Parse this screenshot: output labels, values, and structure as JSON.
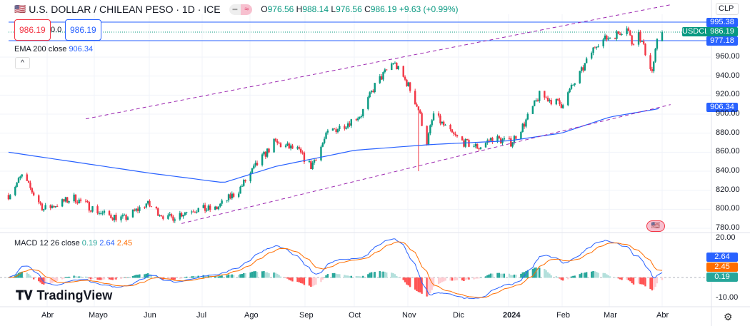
{
  "header": {
    "title": "U.S. DOLLAR / CHILEAN PESO · 1D · ICE",
    "open_label": "O",
    "open": "976.56",
    "high_label": "H",
    "high": "988.14",
    "low_label": "L",
    "low": "976.56",
    "close_label": "C",
    "close": "986.19",
    "change": "+9.63 (+0.99%)",
    "mode_icons": [
      "minus-icon",
      "approx-icon"
    ]
  },
  "trade_boxes": {
    "sell": "986.19",
    "spread": "0.0",
    "buy": "986.19"
  },
  "ema": {
    "label": "EMA 200 close",
    "value": "906.34"
  },
  "collapse_label": "^",
  "currency": {
    "value": "CLP"
  },
  "symbol_tag": "USDCLP",
  "price_tags": [
    {
      "value": "995.38",
      "color": "#2962ff"
    },
    {
      "value": "986.19",
      "color": "#089981"
    },
    {
      "value": "977.18",
      "color": "#2962ff"
    },
    {
      "value": "906.34",
      "color": "#2962ff"
    }
  ],
  "macd": {
    "label": "MACD 12 26 close",
    "hist": "0.19",
    "macd": "2.64",
    "signal": "2.45",
    "tags": [
      "2.64",
      "2.45",
      "0.19"
    ]
  },
  "logo": "TradingView",
  "colors": {
    "up": "#089981",
    "down": "#f23645",
    "ema": "#2962ff",
    "macd": "#2962ff",
    "signal": "#ff6d00",
    "channel": "#9c27b0"
  },
  "chart_data": {
    "type": "candlestick",
    "price_axis": {
      "ticks": [
        "960.00",
        "940.00",
        "920.00",
        "900.00",
        "880.00",
        "860.00",
        "840.00",
        "820.00",
        "800.00",
        "780.00"
      ],
      "range": [
        772,
        1000
      ]
    },
    "macd_axis": {
      "ticks": [
        "20.00",
        "-10.00"
      ],
      "range": [
        -16,
        22
      ]
    },
    "x_ticks": [
      "Abr",
      "Mayo",
      "Jun",
      "Jul",
      "Ago",
      "Sep",
      "Oct",
      "Nov",
      "Dic",
      "2024",
      "Feb",
      "Mar",
      "Abr"
    ],
    "close_path": [
      [
        "2023-03-09",
        815
      ],
      [
        "2023-03-17",
        835
      ],
      [
        "2023-03-30",
        800
      ],
      [
        "2023-04-17",
        812
      ],
      [
        "2023-05-04",
        795
      ],
      [
        "2023-05-17",
        790
      ],
      [
        "2023-05-30",
        806
      ],
      [
        "2023-06-12",
        790
      ],
      [
        "2023-06-26",
        800
      ],
      [
        "2023-07-10",
        800
      ],
      [
        "2023-07-24",
        820
      ],
      [
        "2023-08-03",
        845
      ],
      [
        "2023-08-14",
        870
      ],
      [
        "2023-08-28",
        862
      ],
      [
        "2023-09-05",
        845
      ],
      [
        "2023-09-15",
        880
      ],
      [
        "2023-09-26",
        890
      ],
      [
        "2023-10-05",
        900
      ],
      [
        "2023-10-13",
        930
      ],
      [
        "2023-10-24",
        955
      ],
      [
        "2023-11-02",
        930
      ],
      [
        "2023-11-08",
        905
      ],
      [
        "2023-11-13",
        870
      ],
      [
        "2023-11-17",
        900
      ],
      [
        "2023-11-22",
        890
      ],
      [
        "2023-11-27",
        880
      ],
      [
        "2023-12-05",
        870
      ],
      [
        "2023-12-14",
        865
      ],
      [
        "2023-12-22",
        875
      ],
      [
        "2024-01-02",
        870
      ],
      [
        "2024-01-10",
        890
      ],
      [
        "2024-01-19",
        920
      ],
      [
        "2024-02-01",
        910
      ],
      [
        "2024-02-13",
        945
      ],
      [
        "2024-02-22",
        975
      ],
      [
        "2024-03-06",
        985
      ],
      [
        "2024-03-11",
        993
      ],
      [
        "2024-03-14",
        975
      ],
      [
        "2024-03-18",
        985
      ],
      [
        "2024-03-22",
        965
      ],
      [
        "2024-03-26",
        945
      ],
      [
        "2024-03-29",
        975
      ],
      [
        "2024-04-01",
        986.19
      ]
    ],
    "last_candle": {
      "open": 976.56,
      "high": 988.14,
      "low": 976.56,
      "close": 986.19
    },
    "ema200_path": [
      [
        "2023-03-09",
        860
      ],
      [
        "2023-06-01",
        838
      ],
      [
        "2023-07-15",
        828
      ],
      [
        "2023-08-15",
        845
      ],
      [
        "2023-10-01",
        862
      ],
      [
        "2023-11-15",
        868
      ],
      [
        "2024-01-01",
        872
      ],
      [
        "2024-02-01",
        880
      ],
      [
        "2024-03-01",
        897
      ],
      [
        "2024-04-01",
        906.34
      ]
    ],
    "channel_upper": [
      [
        "2023-04-24",
        895
      ],
      [
        "2024-04-06",
        1015
      ]
    ],
    "channel_lower": [
      [
        "2023-06-20",
        785
      ],
      [
        "2024-04-06",
        910
      ]
    ],
    "horizontal_levels": [
      995.38,
      986.19,
      977.18
    ]
  }
}
